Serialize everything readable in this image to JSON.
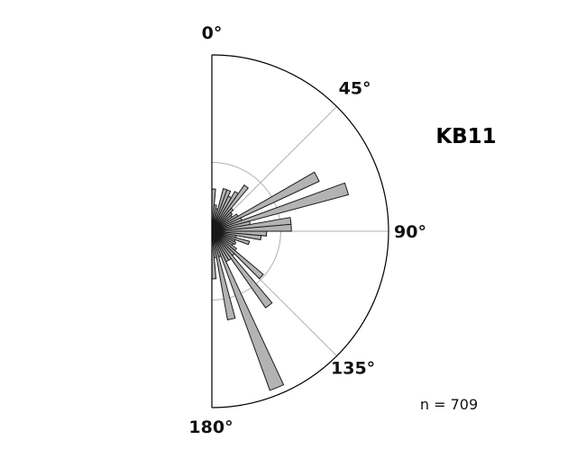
{
  "chart_data": {
    "type": "rose",
    "title": "KB11",
    "annotation": "n = 709",
    "angle_ticks": [
      {
        "deg": 0,
        "label": "0°"
      },
      {
        "deg": 45,
        "label": "45°"
      },
      {
        "deg": 90,
        "label": "90°"
      },
      {
        "deg": 135,
        "label": "135°"
      },
      {
        "deg": 180,
        "label": "180°"
      }
    ],
    "angle_range": [
      0,
      180
    ],
    "bin_width_deg": 5,
    "radial_max": 1.0,
    "inner_ring": 0.39,
    "bins": [
      {
        "start": 0,
        "value": 0.24
      },
      {
        "start": 5,
        "value": 0.15
      },
      {
        "start": 10,
        "value": 0.13
      },
      {
        "start": 15,
        "value": 0.25
      },
      {
        "start": 20,
        "value": 0.25
      },
      {
        "start": 25,
        "value": 0.22
      },
      {
        "start": 30,
        "value": 0.26
      },
      {
        "start": 35,
        "value": 0.32
      },
      {
        "start": 40,
        "value": 0.17
      },
      {
        "start": 45,
        "value": 0.15
      },
      {
        "start": 50,
        "value": 0.14
      },
      {
        "start": 55,
        "value": 0.17
      },
      {
        "start": 60,
        "value": 0.67
      },
      {
        "start": 65,
        "value": 0.18
      },
      {
        "start": 70,
        "value": 0.8
      },
      {
        "start": 75,
        "value": 0.22
      },
      {
        "start": 80,
        "value": 0.45
      },
      {
        "start": 85,
        "value": 0.45
      },
      {
        "start": 90,
        "value": 0.31
      },
      {
        "start": 95,
        "value": 0.28
      },
      {
        "start": 100,
        "value": 0.14
      },
      {
        "start": 105,
        "value": 0.22
      },
      {
        "start": 110,
        "value": 0.14
      },
      {
        "start": 115,
        "value": 0.15
      },
      {
        "start": 120,
        "value": 0.14
      },
      {
        "start": 125,
        "value": 0.17
      },
      {
        "start": 130,
        "value": 0.38
      },
      {
        "start": 135,
        "value": 0.18
      },
      {
        "start": 140,
        "value": 0.53
      },
      {
        "start": 145,
        "value": 0.19
      },
      {
        "start": 150,
        "value": 0.19
      },
      {
        "start": 155,
        "value": 0.96
      },
      {
        "start": 160,
        "value": 0.15
      },
      {
        "start": 165,
        "value": 0.51
      },
      {
        "start": 170,
        "value": 0.15
      },
      {
        "start": 175,
        "value": 0.27
      }
    ],
    "colors": {
      "bar_fill": "#b3b3b3",
      "bar_edge": "#1a1a1a",
      "grid": "#b0b0b0",
      "frame": "#000000"
    }
  }
}
